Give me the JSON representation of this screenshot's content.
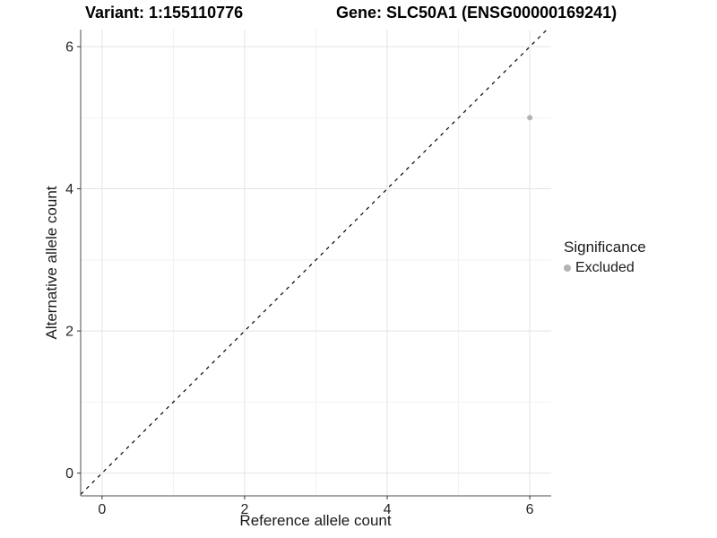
{
  "titles": {
    "variant": "Variant: 1:155110776",
    "gene": "Gene: SLC50A1 (ENSG00000169241)"
  },
  "chart_data": {
    "type": "scatter",
    "xlabel": "Reference allele count",
    "ylabel": "Alternative allele count",
    "xlim": [
      -0.3,
      6.3
    ],
    "ylim": [
      -0.32,
      6.24
    ],
    "x_ticks": [
      0,
      2,
      4,
      6
    ],
    "y_ticks": [
      0,
      2,
      4,
      6
    ],
    "x_minor_ticks": [
      1,
      3,
      5
    ],
    "y_minor_ticks": [
      1,
      3,
      5
    ],
    "grid": "on",
    "legend_position": "right",
    "reference_line": {
      "kind": "identity",
      "slope": 1,
      "intercept": 0,
      "style": "dashed",
      "color": "#000000"
    },
    "series": [
      {
        "name": "Excluded",
        "color": "#b3b3b3",
        "points": [
          {
            "x": 6,
            "y": 5
          }
        ]
      }
    ],
    "legend": {
      "title": "Significance",
      "items": [
        {
          "label": "Excluded",
          "color": "#b3b3b3"
        }
      ]
    }
  },
  "colors": {
    "background": "#ffffff",
    "grid_major": "#e4e4e4",
    "grid_minor": "#f1f1f1",
    "axis_line": "#4d4d4d",
    "tick_mark": "#333333",
    "tick_label": "#262626",
    "point": "#b3b3b3",
    "dashed_line": "#000000"
  }
}
